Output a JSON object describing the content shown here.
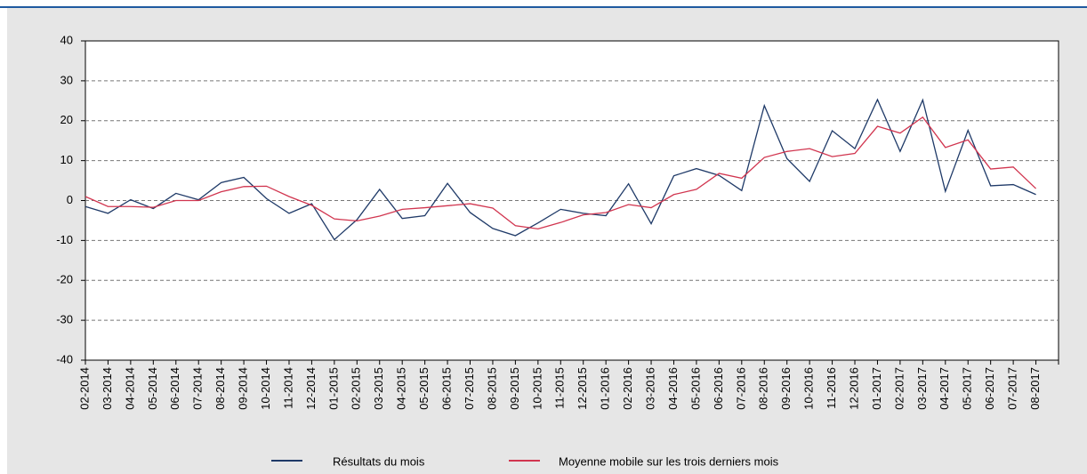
{
  "chart_data": {
    "type": "line",
    "categories": [
      "02-2014",
      "03-2014",
      "04-2014",
      "05-2014",
      "06-2014",
      "07-2014",
      "08-2014",
      "09-2014",
      "10-2014",
      "11-2014",
      "12-2014",
      "01-2015",
      "02-2015",
      "03-2015",
      "04-2015",
      "05-2015",
      "06-2015",
      "07-2015",
      "08-2015",
      "09-2015",
      "10-2015",
      "11-2015",
      "12-2015",
      "01-2016",
      "02-2016",
      "03-2016",
      "04-2016",
      "05-2016",
      "06-2016",
      "07-2016",
      "08-2016",
      "09-2016",
      "10-2016",
      "11-2016",
      "12-2016",
      "01-2017",
      "02-2017",
      "03-2017",
      "04-2017",
      "05-2017",
      "06-2017",
      "07-2017",
      "08-2017"
    ],
    "series": [
      {
        "name": "Résultats du mois",
        "color": "#1f3a68",
        "values": [
          -1.5,
          -3.2,
          0.2,
          -2,
          1.8,
          0.2,
          4.5,
          5.8,
          0.5,
          -3.2,
          -0.8,
          -9.8,
          -4.8,
          2.8,
          -4.5,
          -3.8,
          4.3,
          -3,
          -7,
          -8.8,
          -5.6,
          -2.2,
          -3.2,
          -3.8,
          4.2,
          -5.8,
          6.2,
          8,
          6.3,
          2.5,
          23.8,
          10.5,
          4.8,
          17.5,
          13,
          25.3,
          12.3,
          25.2,
          2.3,
          17.6,
          3.7,
          4,
          1.5
        ]
      },
      {
        "name": "Moyenne mobile sur les trois derniers mois",
        "color": "#d1354f",
        "values": [
          1,
          -1.5,
          -1.5,
          -1.7,
          0,
          0,
          2.2,
          3.5,
          3.6,
          1,
          -1.2,
          -4.6,
          -5.1,
          -3.9,
          -2.2,
          -1.8,
          -1.3,
          -0.8,
          -1.9,
          -6.3,
          -7.1,
          -5.5,
          -3.6,
          -3,
          -1,
          -1.8,
          1.5,
          2.8,
          6.8,
          5.6,
          10.8,
          12.3,
          13,
          11,
          11.8,
          18.6,
          16.9,
          20.9,
          13.3,
          15.2,
          7.9,
          8.4,
          3
        ]
      }
    ],
    "ylim": [
      -40,
      40
    ],
    "yticks": [
      -40,
      -30,
      -20,
      -10,
      0,
      10,
      20,
      30,
      40
    ],
    "grid": true,
    "legend": "bottom"
  }
}
